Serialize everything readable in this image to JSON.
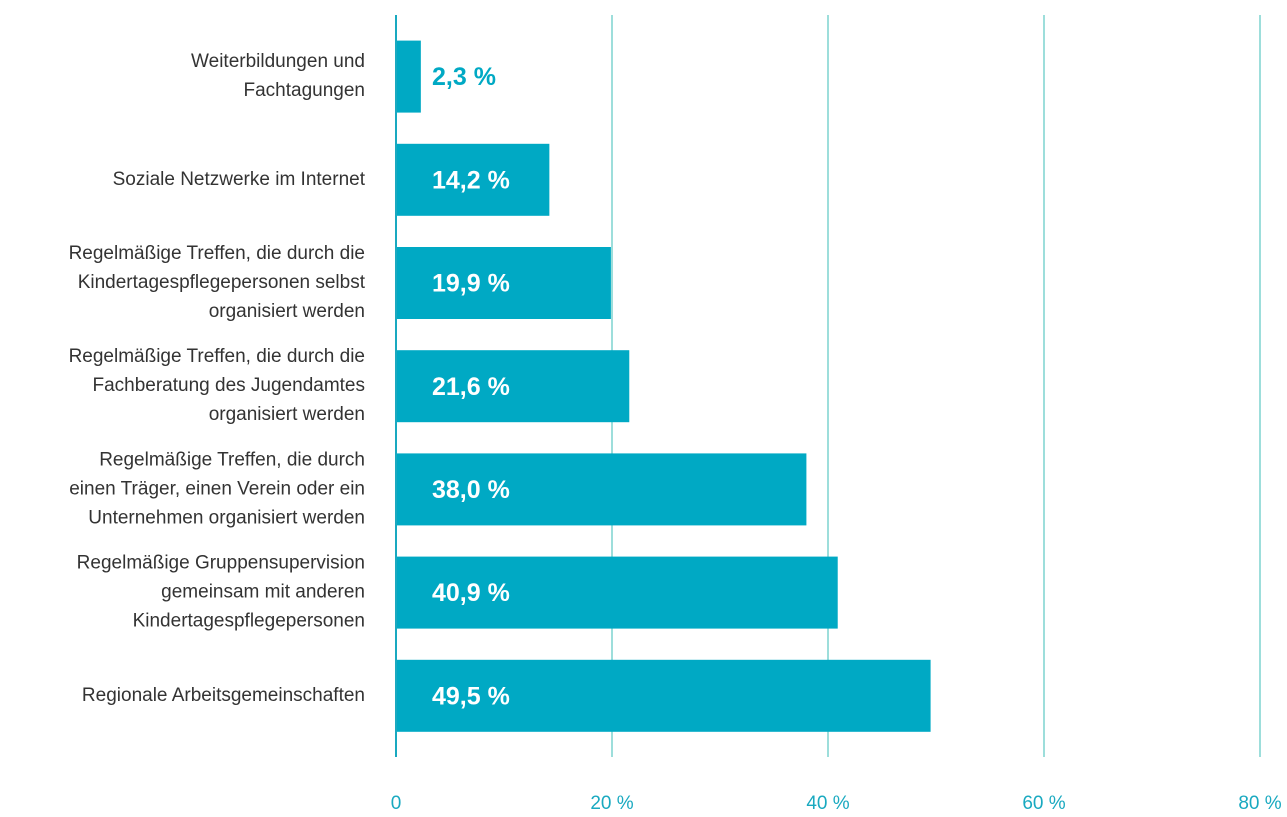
{
  "chart_data": {
    "type": "barh",
    "categories": [
      [
        "Weiterbildungen und",
        "Fachtagungen"
      ],
      [
        "Soziale Netzwerke im Internet"
      ],
      [
        "Regelmäßige Treffen, die durch die",
        "Kindertagespflegepersonen selbst",
        "organisiert werden"
      ],
      [
        "Regelmäßige Treffen, die durch die",
        "Fachberatung des Jugendamtes",
        "organisiert werden"
      ],
      [
        "Regelmäßige Treffen, die durch",
        "einen Träger, einen Verein oder ein",
        "Unternehmen organisiert werden"
      ],
      [
        "Regelmäßige Gruppensupervision",
        "gemeinsam mit anderen",
        "Kindertagespflegepersonen"
      ],
      [
        "Regionale Arbeitsgemeinschaften"
      ]
    ],
    "values": [
      2.3,
      14.2,
      19.9,
      21.6,
      38.0,
      40.9,
      49.5
    ],
    "value_labels": [
      "2,3 %",
      "14,2 %",
      "19,9 %",
      "21,6 %",
      "38,0 %",
      "40,9 %",
      "49,5 %"
    ],
    "color": "#00a9c4",
    "xlim": [
      0,
      80
    ],
    "xticks": [
      0,
      {
        "value": 20,
        "label": "20 %"
      },
      {
        "value": 40,
        "label": "40 %"
      },
      {
        "value": 60,
        "label": "60 %"
      },
      {
        "value": 80,
        "label": "80 %"
      }
    ],
    "grid": true
  }
}
